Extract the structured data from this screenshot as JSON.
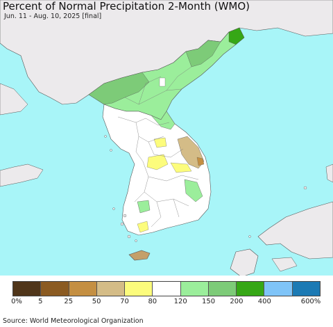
{
  "title": "Percent of Normal Precipitation 2-Month (WMO)",
  "subtitle": "Jun. 11 - Aug. 10, 2025 [final]",
  "source": "Source: World Meteorological Organization",
  "colors": {
    "ocean": "#a8f5f8",
    "land_outside": "#eceaec",
    "border": "#555555",
    "white": "#ffffff",
    "light_green": "#9bee9b",
    "mid_green": "#7dcb78",
    "dark_green": "#36a716",
    "yellow": "#fcfc7c",
    "tan": "#cdb67c",
    "brown_light": "#c48f42"
  },
  "legend": {
    "swatches": [
      "#50361a",
      "#8b5b22",
      "#c48f42",
      "#d4bc87",
      "#fcfc7c",
      "#ffffff",
      "#9bee9b",
      "#7dcb78",
      "#36a716",
      "#7fc4f8",
      "#1c7ab4"
    ],
    "labels": [
      "0%",
      "5",
      "25",
      "50",
      "70",
      "80",
      "120",
      "150",
      "200",
      "400",
      "600%"
    ]
  }
}
